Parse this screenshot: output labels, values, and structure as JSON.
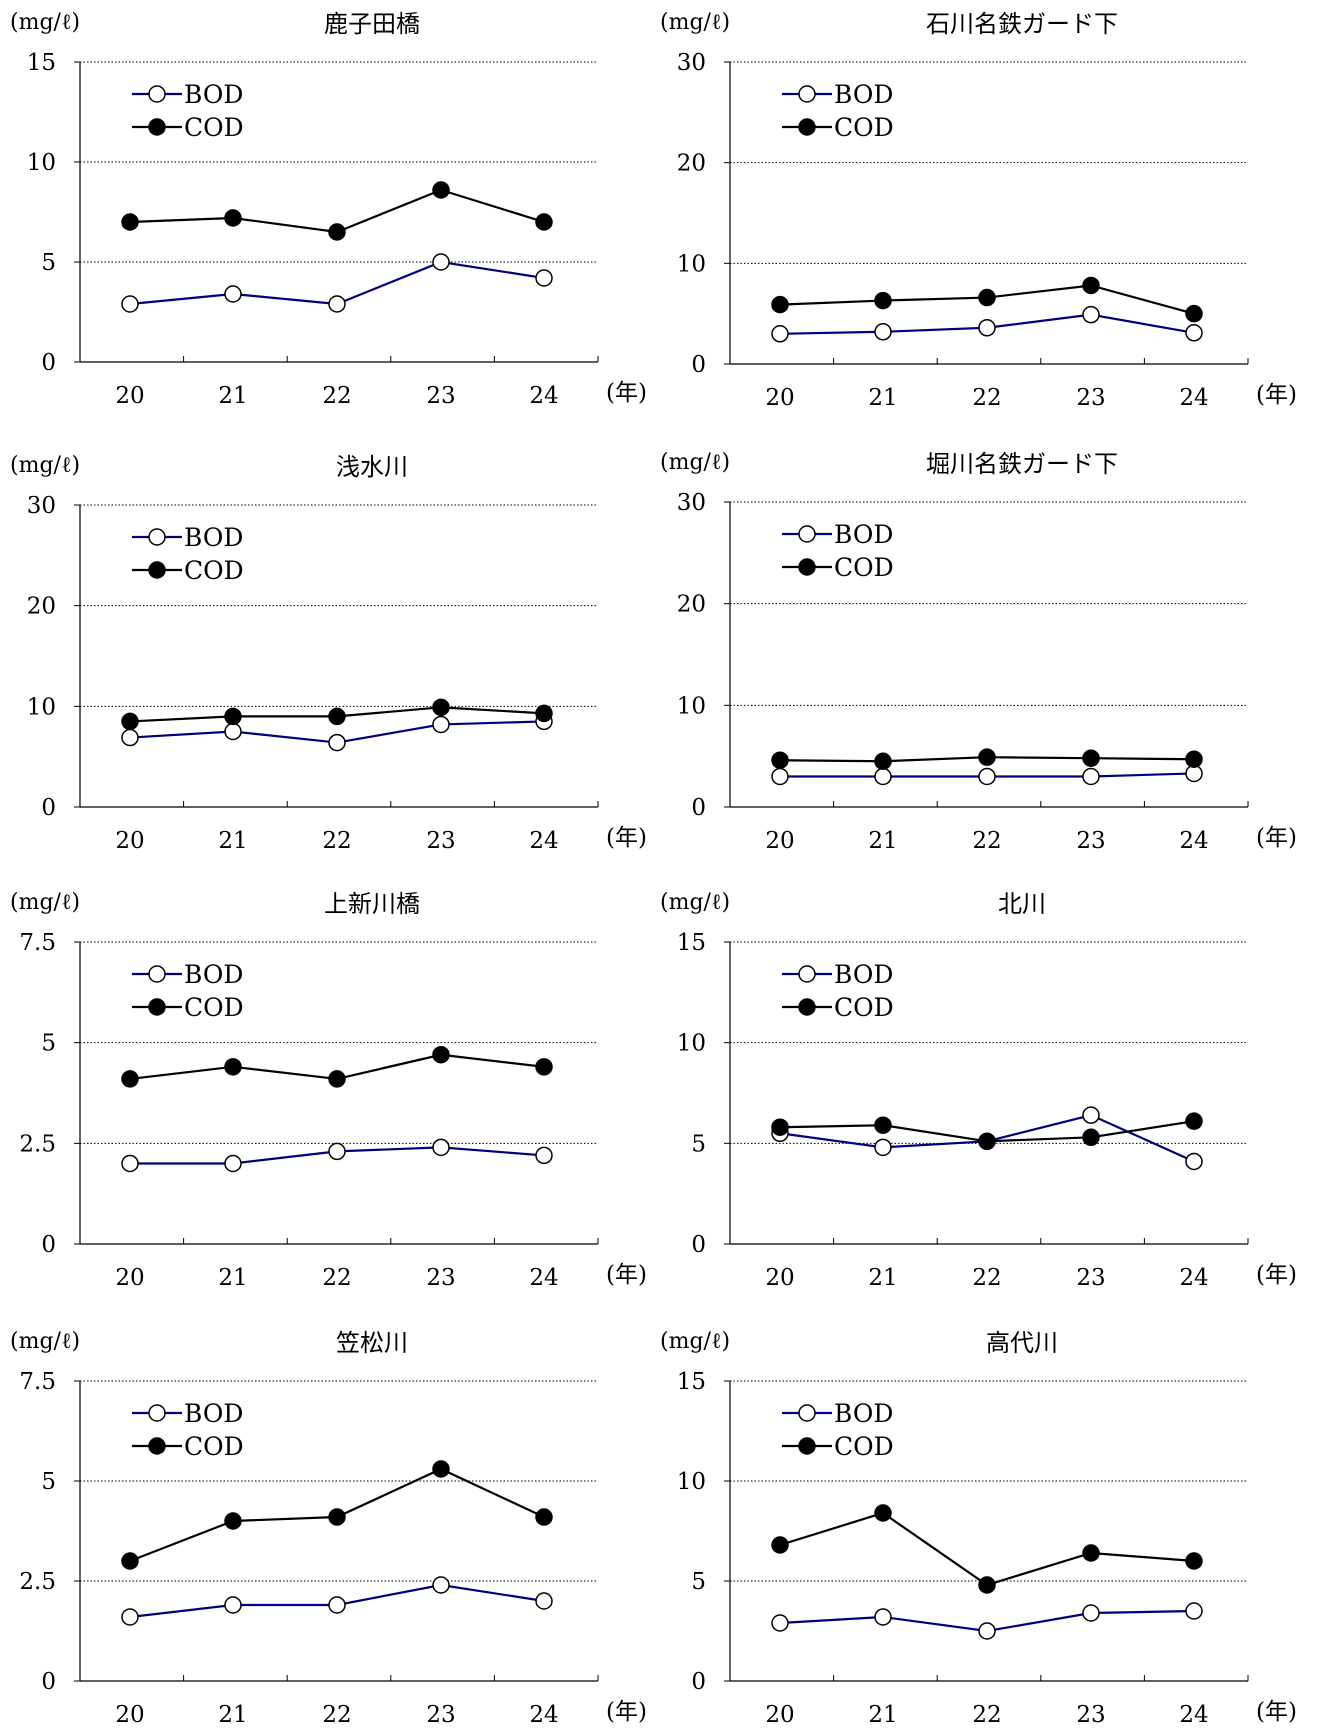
{
  "chart_data": [
    {
      "type": "line",
      "title": "鹿子田橋",
      "ylabel": "(mg/ℓ)",
      "xunit": "(年)",
      "categories": [
        "20",
        "21",
        "22",
        "23",
        "24"
      ],
      "ylim": [
        0,
        15
      ],
      "yticks": [
        "0",
        "5",
        "10",
        "15"
      ],
      "grid": true,
      "legend": "top-left",
      "series": [
        {
          "name": "BOD",
          "values": [
            2.9,
            3.4,
            2.9,
            5.0,
            4.2
          ],
          "color": "#00007f",
          "marker": "open-circle"
        },
        {
          "name": "COD",
          "values": [
            7.0,
            7.2,
            6.5,
            8.6,
            7.0
          ],
          "color": "#000000",
          "marker": "filled-circle"
        }
      ]
    },
    {
      "type": "line",
      "title": "石川名鉄ガード下",
      "ylabel": "(mg/ℓ)",
      "xunit": "(年)",
      "categories": [
        "20",
        "21",
        "22",
        "23",
        "24"
      ],
      "ylim": [
        0,
        30
      ],
      "yticks": [
        "0",
        "10",
        "20",
        "30"
      ],
      "grid": true,
      "legend": "top-left",
      "series": [
        {
          "name": "BOD",
          "values": [
            3.0,
            3.2,
            3.6,
            4.9,
            3.1
          ],
          "color": "#00007f",
          "marker": "open-circle"
        },
        {
          "name": "COD",
          "values": [
            5.9,
            6.3,
            6.6,
            7.8,
            5.0
          ],
          "color": "#000000",
          "marker": "filled-circle"
        }
      ]
    },
    {
      "type": "line",
      "title": "浅水川",
      "ylabel": "(mg/ℓ)",
      "xunit": "(年)",
      "categories": [
        "20",
        "21",
        "22",
        "23",
        "24"
      ],
      "ylim": [
        0,
        30
      ],
      "yticks": [
        "0",
        "10",
        "20",
        "30"
      ],
      "grid": true,
      "legend": "top-left",
      "series": [
        {
          "name": "BOD",
          "values": [
            6.9,
            7.5,
            6.4,
            8.2,
            8.5
          ],
          "color": "#00007f",
          "marker": "open-circle"
        },
        {
          "name": "COD",
          "values": [
            8.5,
            9.0,
            9.0,
            9.9,
            9.3
          ],
          "color": "#000000",
          "marker": "filled-circle"
        }
      ]
    },
    {
      "type": "line",
      "title": "堀川名鉄ガード下",
      "ylabel": "(mg/ℓ)",
      "xunit": "(年)",
      "categories": [
        "20",
        "21",
        "22",
        "23",
        "24"
      ],
      "ylim": [
        0,
        30
      ],
      "yticks": [
        "0",
        "10",
        "20",
        "30"
      ],
      "grid": true,
      "legend": "top-left",
      "series": [
        {
          "name": "BOD",
          "values": [
            3.0,
            3.0,
            3.0,
            3.0,
            3.3
          ],
          "color": "#00007f",
          "marker": "open-circle"
        },
        {
          "name": "COD",
          "values": [
            4.6,
            4.5,
            4.9,
            4.8,
            4.7
          ],
          "color": "#000000",
          "marker": "filled-circle"
        }
      ]
    },
    {
      "type": "line",
      "title": "上新川橋",
      "ylabel": "(mg/ℓ)",
      "xunit": "(年)",
      "categories": [
        "20",
        "21",
        "22",
        "23",
        "24"
      ],
      "ylim": [
        0,
        7.5
      ],
      "yticks": [
        "0",
        "2.5",
        "5",
        "7.5"
      ],
      "grid": true,
      "legend": "top-left",
      "series": [
        {
          "name": "BOD",
          "values": [
            2.0,
            2.0,
            2.3,
            2.4,
            2.2
          ],
          "color": "#00007f",
          "marker": "open-circle"
        },
        {
          "name": "COD",
          "values": [
            4.1,
            4.4,
            4.1,
            4.7,
            4.4
          ],
          "color": "#000000",
          "marker": "filled-circle"
        }
      ]
    },
    {
      "type": "line",
      "title": "北川",
      "ylabel": "(mg/ℓ)",
      "xunit": "(年)",
      "categories": [
        "20",
        "21",
        "22",
        "23",
        "24"
      ],
      "ylim": [
        0,
        15
      ],
      "yticks": [
        "0",
        "5",
        "10",
        "15"
      ],
      "grid": true,
      "legend": "top-left",
      "series": [
        {
          "name": "BOD",
          "values": [
            5.5,
            4.8,
            5.1,
            6.4,
            4.1
          ],
          "color": "#00007f",
          "marker": "open-circle"
        },
        {
          "name": "COD",
          "values": [
            5.8,
            5.9,
            5.1,
            5.3,
            6.1
          ],
          "color": "#000000",
          "marker": "filled-circle"
        }
      ]
    },
    {
      "type": "line",
      "title": "笠松川",
      "ylabel": "(mg/ℓ)",
      "xunit": "(年)",
      "categories": [
        "20",
        "21",
        "22",
        "23",
        "24"
      ],
      "ylim": [
        0,
        7.5
      ],
      "yticks": [
        "0",
        "2.5",
        "5",
        "7.5"
      ],
      "grid": true,
      "legend": "top-left",
      "series": [
        {
          "name": "BOD",
          "values": [
            1.6,
            1.9,
            1.9,
            2.4,
            2.0
          ],
          "color": "#00007f",
          "marker": "open-circle"
        },
        {
          "name": "COD",
          "values": [
            3.0,
            4.0,
            4.1,
            5.3,
            4.1
          ],
          "color": "#000000",
          "marker": "filled-circle"
        }
      ]
    },
    {
      "type": "line",
      "title": "高代川",
      "ylabel": "(mg/ℓ)",
      "xunit": "(年)",
      "categories": [
        "20",
        "21",
        "22",
        "23",
        "24"
      ],
      "ylim": [
        0,
        15
      ],
      "yticks": [
        "0",
        "5",
        "10",
        "15"
      ],
      "grid": true,
      "legend": "top-left",
      "series": [
        {
          "name": "BOD",
          "values": [
            2.9,
            3.2,
            2.5,
            3.4,
            3.5
          ],
          "color": "#00007f",
          "marker": "open-circle"
        },
        {
          "name": "COD",
          "values": [
            6.8,
            8.4,
            4.8,
            6.4,
            6.0
          ],
          "color": "#000000",
          "marker": "filled-circle"
        }
      ]
    }
  ]
}
